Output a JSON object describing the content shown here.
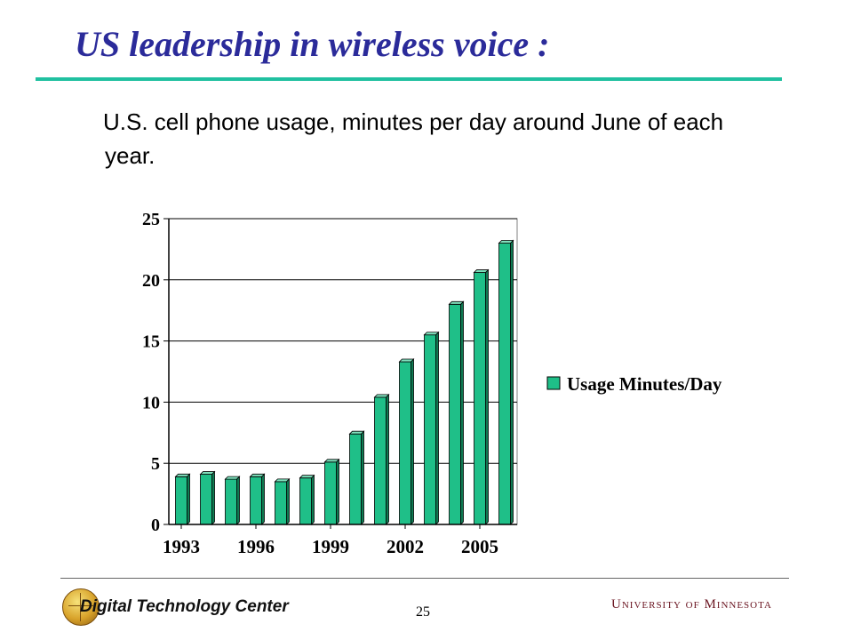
{
  "slide": {
    "title": "US leadership in wireless voice :",
    "subtitle": "U.S. cell phone usage, minutes per day around June of each year.",
    "page_number": "25",
    "footer_left_logo": "Digital Technology Center",
    "footer_right_logo": "University of Minnesota"
  },
  "colors": {
    "title": "#2b2b9a",
    "title_rule": "#20c0a0",
    "bar": "#1fbf88",
    "bar_side": "#0f7a52",
    "bar_top": "#7ee0bc"
  },
  "chart_data": {
    "type": "bar",
    "title": "",
    "xlabel": "",
    "ylabel": "",
    "x": [
      1993,
      1994,
      1995,
      1996,
      1997,
      1998,
      1999,
      2000,
      2001,
      2002,
      2003,
      2004,
      2005,
      2006
    ],
    "tick_labels": [
      "1993",
      "1996",
      "1999",
      "2002",
      "2005"
    ],
    "series": [
      {
        "name": "Usage Minutes/Day",
        "values": [
          3.9,
          4.1,
          3.7,
          3.9,
          3.5,
          3.8,
          5.1,
          7.4,
          10.4,
          13.3,
          15.5,
          18.0,
          20.6,
          23.0
        ]
      }
    ],
    "ylim": [
      0,
      25
    ],
    "yticks": [
      0,
      5,
      10,
      15,
      20,
      25
    ],
    "grid": true,
    "legend_position": "right"
  }
}
